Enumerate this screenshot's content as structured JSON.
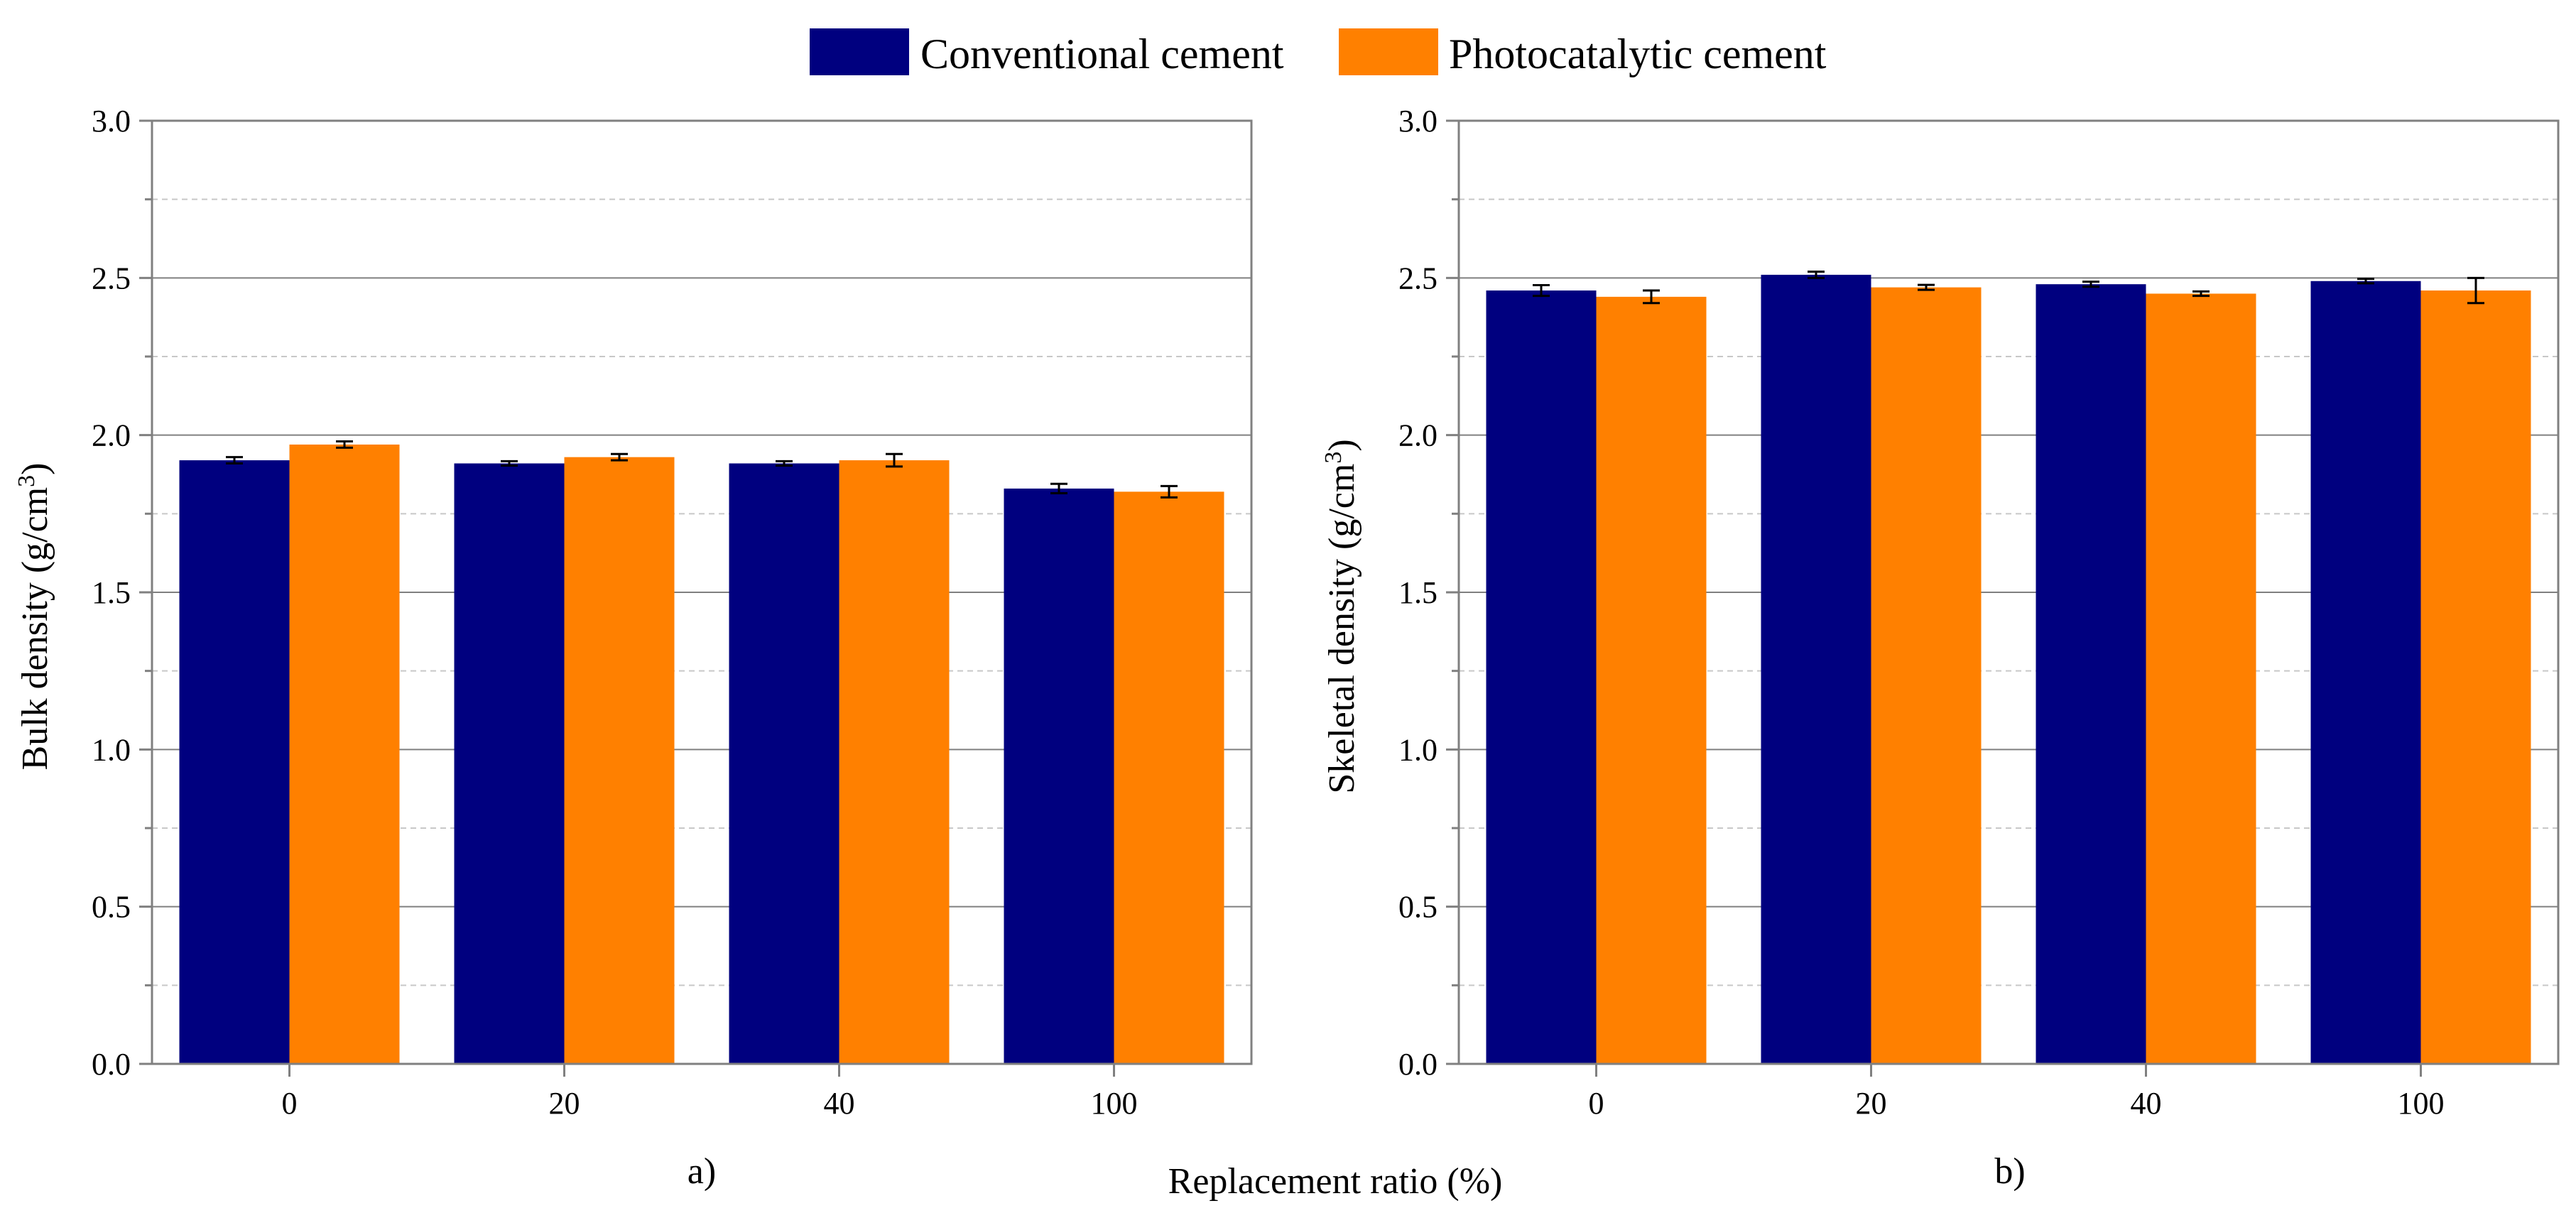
{
  "legend": {
    "items": [
      {
        "label": "Conventional cement",
        "color": "#00007f"
      },
      {
        "label": "Photocatalytic cement",
        "color": "#ff8000"
      }
    ]
  },
  "shared_xlabel": "Replacement ratio (%)",
  "colors": {
    "grid_major": "#808080",
    "grid_minor": "#c8c8c8",
    "axis": "#808080",
    "error": "#000000"
  },
  "chart_data": [
    {
      "type": "bar",
      "panel_label": "a)",
      "title": "",
      "xlabel": "Replacement ratio (%)",
      "ylabel_main": "Bulk density (g/cm",
      "ylabel_sup": "3",
      "ylabel_end": ")",
      "categories": [
        "0",
        "20",
        "40",
        "100"
      ],
      "ylim": [
        0,
        3
      ],
      "yticks": [
        "0.0",
        "0.5",
        "1.0",
        "1.5",
        "2.0",
        "2.5",
        "3.0"
      ],
      "series": [
        {
          "name": "Conventional cement",
          "values": [
            1.92,
            1.91,
            1.91,
            1.83
          ],
          "errors": [
            0.01,
            0.007,
            0.007,
            0.015
          ]
        },
        {
          "name": "Photocatalytic cement",
          "values": [
            1.97,
            1.93,
            1.92,
            1.82
          ],
          "errors": [
            0.01,
            0.01,
            0.02,
            0.018
          ]
        }
      ]
    },
    {
      "type": "bar",
      "panel_label": "b)",
      "title": "",
      "xlabel": "Replacement ratio (%)",
      "ylabel_main": "Skeletal density (g/cm",
      "ylabel_sup": "3",
      "ylabel_end": ")",
      "categories": [
        "0",
        "20",
        "40",
        "100"
      ],
      "ylim": [
        0,
        3
      ],
      "yticks": [
        "0.0",
        "0.5",
        "1.0",
        "1.5",
        "2.0",
        "2.5",
        "3.0"
      ],
      "series": [
        {
          "name": "Conventional cement",
          "values": [
            2.46,
            2.51,
            2.48,
            2.49
          ],
          "errors": [
            0.017,
            0.01,
            0.008,
            0.007
          ]
        },
        {
          "name": "Photocatalytic cement",
          "values": [
            2.44,
            2.47,
            2.45,
            2.46
          ],
          "errors": [
            0.02,
            0.008,
            0.007,
            0.04
          ]
        }
      ]
    }
  ]
}
